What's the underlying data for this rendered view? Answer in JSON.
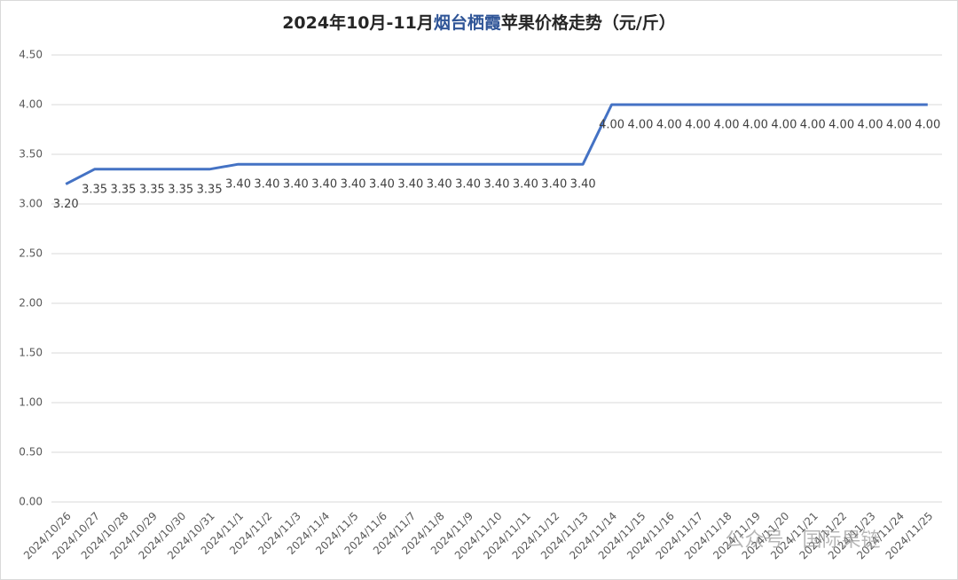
{
  "chart_data": {
    "type": "line",
    "title": [
      "2024年10月-11月",
      "烟台栖霞",
      "苹果价格走势（元/斤）"
    ],
    "title_highlight_color": "#2f5597",
    "categories": [
      "2024/10/26",
      "2024/10/27",
      "2024/10/28",
      "2024/10/29",
      "2024/10/30",
      "2024/10/31",
      "2024/11/1",
      "2024/11/2",
      "2024/11/3",
      "2024/11/4",
      "2024/11/5",
      "2024/11/6",
      "2024/11/7",
      "2024/11/8",
      "2024/11/9",
      "2024/11/10",
      "2024/11/11",
      "2024/11/12",
      "2024/11/13",
      "2024/11/14",
      "2024/11/15",
      "2024/11/16",
      "2024/11/17",
      "2024/11/18",
      "2024/11/19",
      "2024/11/20",
      "2024/11/21",
      "2024/11/22",
      "2024/11/23",
      "2024/11/24",
      "2024/11/25"
    ],
    "values": [
      3.2,
      3.35,
      3.35,
      3.35,
      3.35,
      3.35,
      3.4,
      3.4,
      3.4,
      3.4,
      3.4,
      3.4,
      3.4,
      3.4,
      3.4,
      3.4,
      3.4,
      3.4,
      3.4,
      4,
      4,
      4,
      4,
      4,
      4,
      4,
      4,
      4,
      4,
      4,
      4
    ],
    "value_labels": [
      "3.20",
      "3.35",
      "3.35",
      "3.35",
      "3.35",
      "3.35",
      "3.40",
      "3.40",
      "3.40",
      "3.40",
      "3.40",
      "3.40",
      "3.40",
      "3.40",
      "3.40",
      "3.40",
      "3.40",
      "3.40",
      "3.40",
      "4.00",
      "4.00",
      "4.00",
      "4.00",
      "4.00",
      "4.00",
      "4.00",
      "4.00",
      "4.00",
      "4.00",
      "4.00",
      "4.00"
    ],
    "color": "#4472c4",
    "ylim": [
      0,
      4.5
    ],
    "yticks": [
      {
        "value": 0,
        "label": "0.00"
      },
      {
        "value": 0.5,
        "label": "0.50"
      },
      {
        "value": 1,
        "label": "1.00"
      },
      {
        "value": 1.5,
        "label": "1.50"
      },
      {
        "value": 2,
        "label": "2.00"
      },
      {
        "value": 2.5,
        "label": "2.50"
      },
      {
        "value": 3,
        "label": "3.00"
      },
      {
        "value": 3.5,
        "label": "3.50"
      },
      {
        "value": 4,
        "label": "4.00"
      },
      {
        "value": 4.5,
        "label": "4.50"
      }
    ],
    "grid": true,
    "watermark": "公众号 · 国际果链"
  }
}
